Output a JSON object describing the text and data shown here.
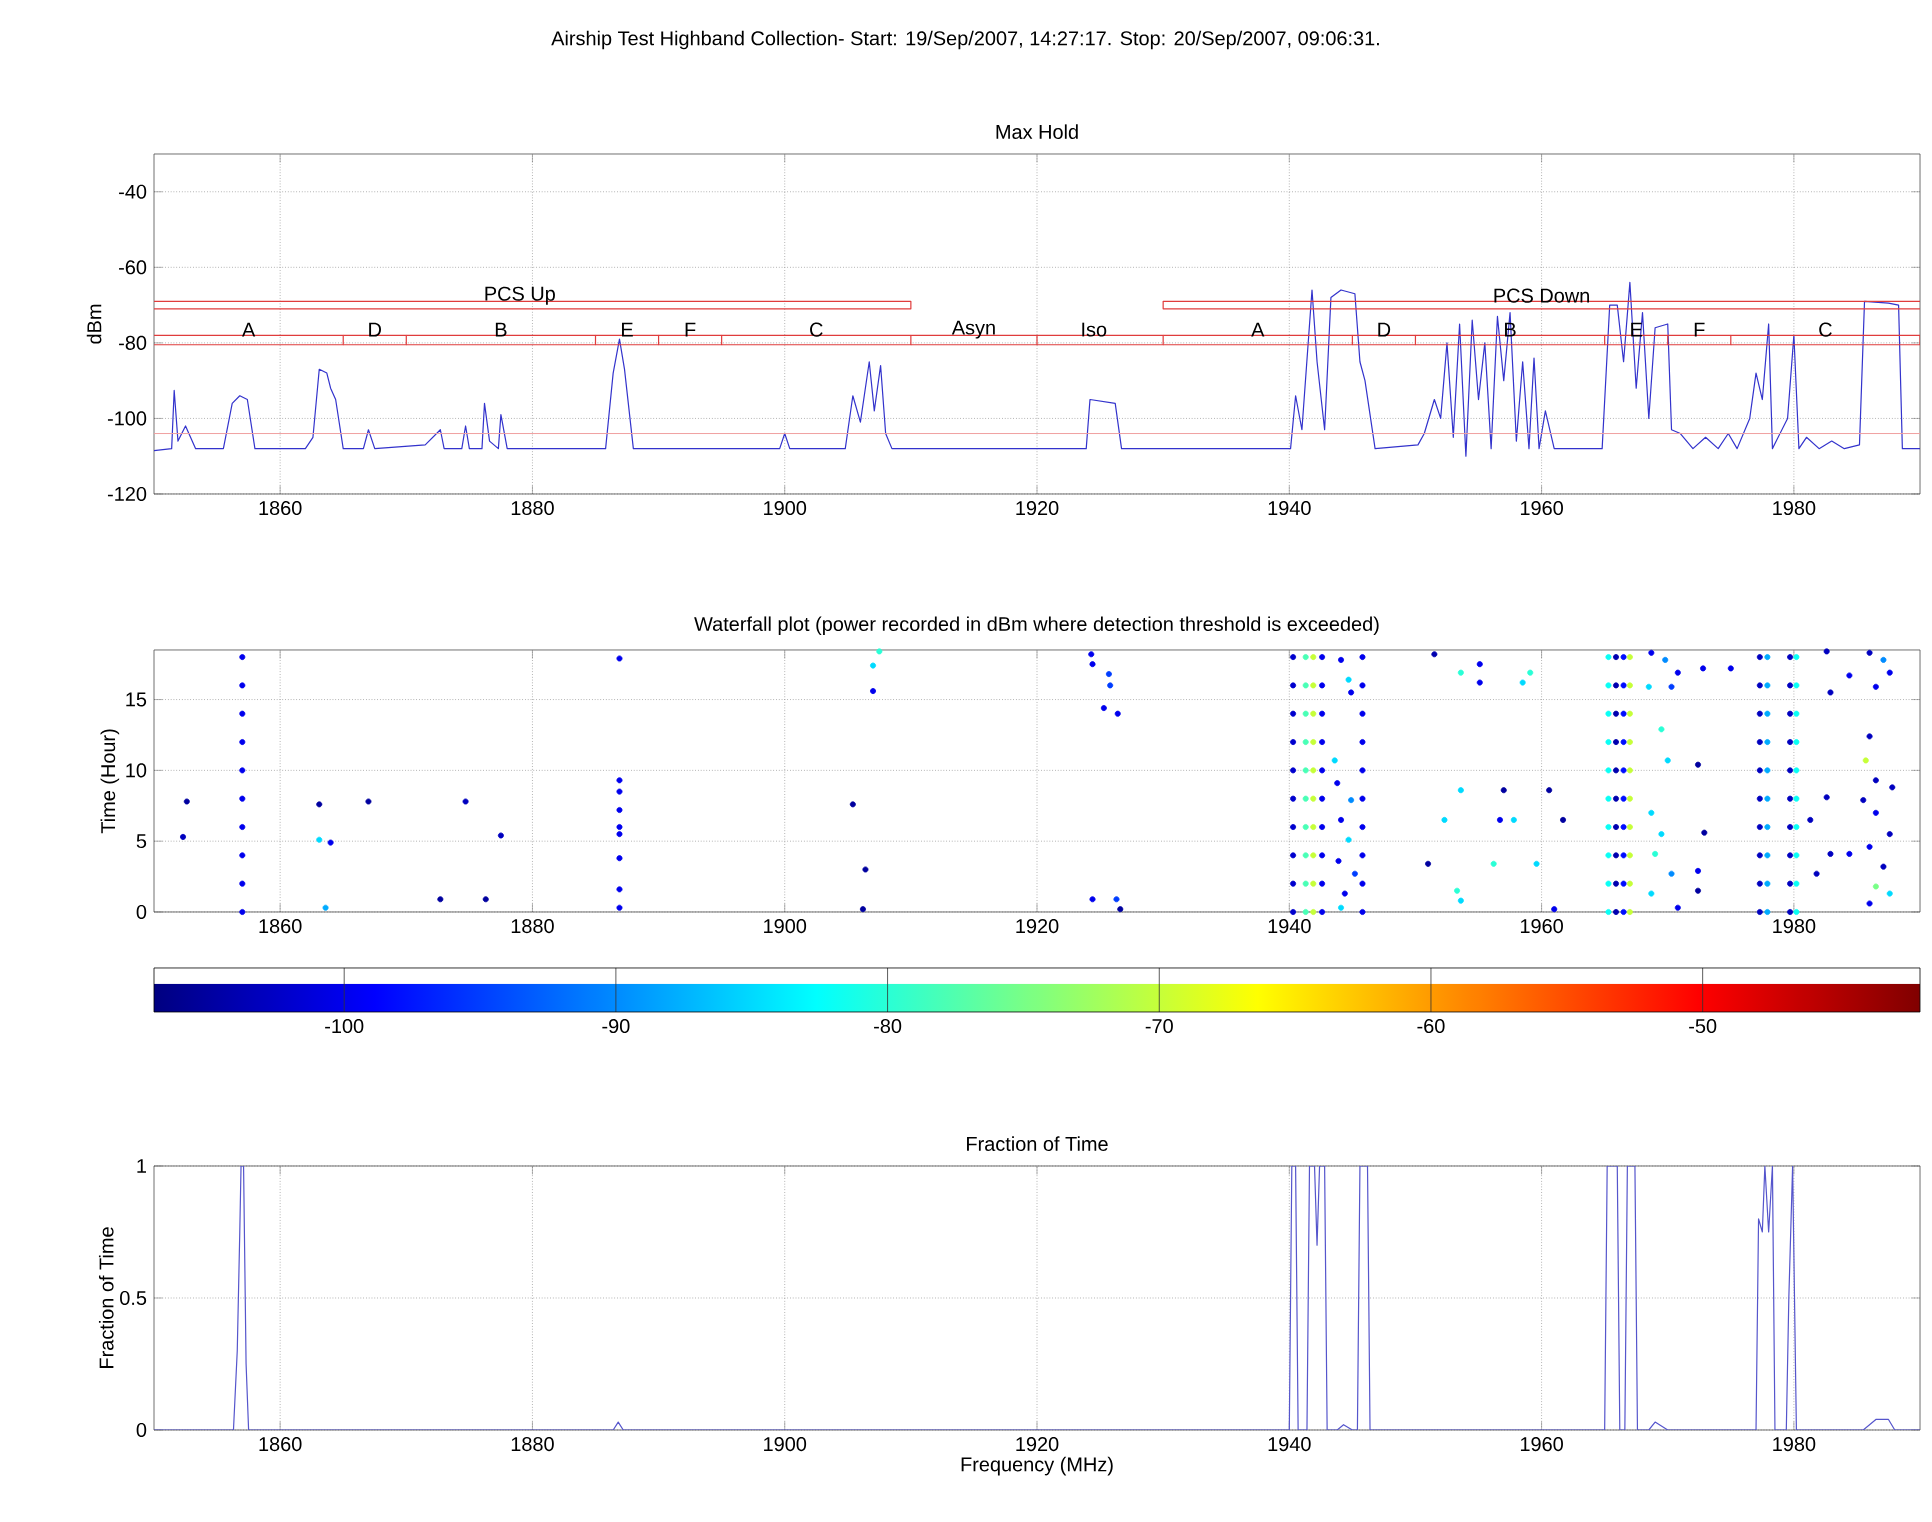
{
  "chart_data": [
    {
      "type": "line",
      "title": "Airship Test Highband Collection- Start: 19/Sep/2007, 14:27:17. Stop:  20/Sep/2007, 09:06:31.",
      "subtitle": "Max Hold",
      "ylabel": "dBm",
      "xlim": [
        1850,
        1990
      ],
      "ylim": [
        -120,
        -30
      ],
      "xticks": [
        1860,
        1880,
        1900,
        1920,
        1940,
        1960,
        1980
      ],
      "yticks": [
        -120,
        -100,
        -80,
        -60,
        -40
      ],
      "grid": true,
      "marker": "none",
      "series": [
        {
          "color": "#3333cc",
          "x": [
            1850,
            1851.4,
            1851.6,
            1851.9,
            1852.5,
            1853.3,
            1855.5,
            1856.2,
            1856.8,
            1857.4,
            1858,
            1862,
            1862.6,
            1863.1,
            1863.7,
            1864,
            1864.4,
            1865,
            1866.6,
            1867,
            1867.5,
            1871.5,
            1872.7,
            1873,
            1874.4,
            1874.7,
            1875,
            1876,
            1876.2,
            1876.6,
            1877.3,
            1877.5,
            1878,
            1885.8,
            1886.4,
            1886.9,
            1887.3,
            1888,
            1899.6,
            1900,
            1900.4,
            1904.8,
            1905.4,
            1906,
            1906.7,
            1907.1,
            1907.6,
            1908,
            1908.5,
            1923.9,
            1924.2,
            1926.2,
            1926.7,
            1940.1,
            1940.5,
            1941.0,
            1941.8,
            1942.2,
            1942.8,
            1943.3,
            1944.1,
            1945.2,
            1945.6,
            1946.0,
            1946.8,
            1950.2,
            1950.7,
            1951.5,
            1952,
            1952.5,
            1953,
            1953.5,
            1954,
            1954.5,
            1955,
            1955.5,
            1956,
            1956.5,
            1957,
            1957.5,
            1958,
            1958.5,
            1959,
            1959.4,
            1959.8,
            1960.3,
            1961,
            1964.8,
            1965.4,
            1966,
            1966.5,
            1967,
            1967.5,
            1968,
            1968.5,
            1969,
            1970,
            1970.3,
            1971,
            1972,
            1973,
            1974,
            1974.8,
            1975.5,
            1976.5,
            1977,
            1977.5,
            1978,
            1978.3,
            1979.5,
            1980,
            1980.4,
            1981,
            1982,
            1983,
            1984,
            1985.2,
            1985.6,
            1987.5,
            1988.3,
            1988.6,
            1990
          ],
          "values": [
            -108.5,
            -108,
            -92.6,
            -106,
            -102,
            -108,
            -108,
            -96,
            -94,
            -95,
            -108,
            -108,
            -105,
            -87,
            -88,
            -92,
            -95,
            -108,
            -108,
            -103,
            -108,
            -107,
            -103,
            -108,
            -108,
            -102,
            -108,
            -108,
            -96,
            -106,
            -108,
            -99,
            -108,
            -108,
            -88,
            -79,
            -87,
            -108,
            -108,
            -104,
            -108,
            -108,
            -94,
            -101,
            -85,
            -98,
            -86,
            -104,
            -108,
            -108,
            -95,
            -96,
            -108,
            -108,
            -94,
            -103,
            -66,
            -85,
            -103,
            -68,
            -66,
            -67,
            -85,
            -90,
            -108,
            -107,
            -104,
            -95,
            -100,
            -80,
            -105,
            -75,
            -110,
            -74,
            -95,
            -80,
            -108,
            -73,
            -90,
            -72,
            -106,
            -85,
            -108,
            -84,
            -108,
            -98,
            -108,
            -108,
            -70,
            -70,
            -85,
            -64,
            -92,
            -72,
            -100,
            -76,
            -75,
            -103,
            -104,
            -108,
            -105,
            -108,
            -104,
            -108,
            -100,
            -88,
            -95,
            -75,
            -108,
            -100,
            -78,
            -108,
            -105,
            -108,
            -106,
            -108,
            -107,
            -69,
            -69.5,
            -70,
            -108,
            -108
          ]
        },
        {
          "color": "#e03c3c",
          "x": [
            1850,
            1910,
            1910,
            1850
          ],
          "values": [
            -69,
            -69,
            -71,
            -71
          ]
        },
        {
          "color": "#e03c3c",
          "x": [
            1990,
            1930,
            1930,
            1990
          ],
          "values": [
            -69,
            -69,
            -71,
            -71
          ]
        },
        {
          "color": "#e03c3c",
          "x": [
            1850,
            1865,
            1865,
            1850
          ],
          "values": [
            -78,
            -78,
            -80.5,
            -80.5
          ]
        },
        {
          "color": "#e03c3c",
          "x": [
            1865,
            1870,
            1870,
            1865
          ],
          "values": [
            -78,
            -78,
            -80.5,
            -80.5
          ]
        },
        {
          "color": "#e03c3c",
          "x": [
            1870,
            1885,
            1885,
            1870
          ],
          "values": [
            -78,
            -78,
            -80.5,
            -80.5
          ]
        },
        {
          "color": "#e03c3c",
          "x": [
            1885,
            1890,
            1890,
            1885
          ],
          "values": [
            -78,
            -78,
            -80.5,
            -80.5
          ]
        },
        {
          "color": "#e03c3c",
          "x": [
            1890,
            1895,
            1895,
            1890
          ],
          "values": [
            -78,
            -78,
            -80.5,
            -80.5
          ]
        },
        {
          "color": "#e03c3c",
          "x": [
            1895,
            1910,
            1910,
            1895
          ],
          "values": [
            -78,
            -78,
            -80.5,
            -80.5
          ]
        },
        {
          "color": "#e03c3c",
          "x": [
            1910,
            1920,
            1920,
            1910
          ],
          "values": [
            -78,
            -78,
            -80.5,
            -80.5
          ]
        },
        {
          "color": "#e03c3c",
          "x": [
            1920,
            1930,
            1930,
            1920
          ],
          "values": [
            -78,
            -78,
            -80.5,
            -80.5
          ]
        },
        {
          "color": "#e03c3c",
          "x": [
            1930,
            1945,
            1945,
            1930
          ],
          "values": [
            -78,
            -78,
            -80.5,
            -80.5
          ]
        },
        {
          "color": "#e03c3c",
          "x": [
            1945,
            1950,
            1950,
            1945
          ],
          "values": [
            -78,
            -78,
            -80.5,
            -80.5
          ]
        },
        {
          "color": "#e03c3c",
          "x": [
            1950,
            1965,
            1965,
            1950
          ],
          "values": [
            -78,
            -78,
            -80.5,
            -80.5
          ]
        },
        {
          "color": "#e03c3c",
          "x": [
            1965,
            1970,
            1970,
            1965
          ],
          "values": [
            -78,
            -78,
            -80.5,
            -80.5
          ]
        },
        {
          "color": "#e03c3c",
          "x": [
            1970,
            1975,
            1975,
            1970
          ],
          "values": [
            -78,
            -78,
            -80.5,
            -80.5
          ]
        },
        {
          "color": "#e03c3c",
          "x": [
            1975,
            1990,
            1990,
            1975
          ],
          "values": [
            -78,
            -78,
            -80.5,
            -80.5
          ]
        }
      ],
      "ref_lines": [
        {
          "axis": "y",
          "value": -104,
          "color": "#f0a0a0"
        }
      ],
      "annotations": [
        {
          "text": "PCS Up",
          "x": 1879,
          "y": -67.5
        },
        {
          "text": "A",
          "x": 1857.5,
          "y": -76.5
        },
        {
          "text": "D",
          "x": 1867.5,
          "y": -76.5
        },
        {
          "text": "B",
          "x": 1877.5,
          "y": -76.5
        },
        {
          "text": "E",
          "x": 1887.5,
          "y": -76.5
        },
        {
          "text": "F",
          "x": 1892.5,
          "y": -76.5
        },
        {
          "text": "C",
          "x": 1902.5,
          "y": -76.5
        },
        {
          "text": "Asyn",
          "x": 1915,
          "y": -76.5
        },
        {
          "text": "Iso",
          "x": 1924.5,
          "y": -76.5
        },
        {
          "text": "PCS Down",
          "x": 1960,
          "y": -67.5
        },
        {
          "text": "A",
          "x": 1937.5,
          "y": -76.5
        },
        {
          "text": "D",
          "x": 1947.5,
          "y": -76.5
        },
        {
          "text": "B",
          "x": 1957.5,
          "y": -76.5
        },
        {
          "text": "E",
          "x": 1967.5,
          "y": -76.5
        },
        {
          "text": "F",
          "x": 1972.5,
          "y": -76.5
        },
        {
          "text": "C",
          "x": 1982.5,
          "y": -76.5
        }
      ]
    },
    {
      "type": "scatter",
      "title": "Waterfall plot (power recorded in dBm where detection threshold is exceeded)",
      "ylabel": "Time (Hour)",
      "xlim": [
        1850,
        1990
      ],
      "ylim": [
        0,
        18.5
      ],
      "xticks": [
        1860,
        1880,
        1900,
        1920,
        1940,
        1960,
        1980
      ],
      "yticks": [
        0,
        5,
        10,
        15
      ],
      "grid": true,
      "marker": "circle",
      "clim": [
        -107,
        -42
      ],
      "cticks": [
        -100,
        -90,
        -80,
        -70,
        -60,
        -50
      ],
      "x": [
        1857,
        1857,
        1857,
        1857,
        1857,
        1857,
        1857,
        1857,
        1857,
        1857,
        1940.3,
        1940.3,
        1940.3,
        1940.3,
        1940.3,
        1940.3,
        1940.3,
        1940.3,
        1940.3,
        1940.3,
        1941.3,
        1941.3,
        1941.3,
        1941.3,
        1941.3,
        1941.3,
        1941.3,
        1941.3,
        1941.3,
        1941.3,
        1941.9,
        1941.9,
        1941.9,
        1941.9,
        1941.9,
        1941.9,
        1941.9,
        1941.9,
        1941.9,
        1941.9,
        1942.6,
        1942.6,
        1942.6,
        1942.6,
        1942.6,
        1942.6,
        1942.6,
        1942.6,
        1942.6,
        1942.6,
        1945.8,
        1945.8,
        1945.8,
        1945.8,
        1945.8,
        1945.8,
        1945.8,
        1945.8,
        1945.8,
        1945.8,
        1965.3,
        1965.3,
        1965.3,
        1965.3,
        1965.3,
        1965.3,
        1965.3,
        1965.3,
        1965.3,
        1965.3,
        1965.9,
        1965.9,
        1965.9,
        1965.9,
        1965.9,
        1965.9,
        1965.9,
        1965.9,
        1965.9,
        1965.9,
        1966.5,
        1966.5,
        1966.5,
        1966.5,
        1966.5,
        1966.5,
        1966.5,
        1966.5,
        1966.5,
        1966.5,
        1967,
        1967,
        1967,
        1967,
        1967,
        1967,
        1967,
        1967,
        1967,
        1967,
        1977.3,
        1977.3,
        1977.3,
        1977.3,
        1977.3,
        1977.3,
        1977.3,
        1977.3,
        1977.3,
        1977.3,
        1977.9,
        1977.9,
        1977.9,
        1977.9,
        1977.9,
        1977.9,
        1977.9,
        1977.9,
        1977.9,
        1977.9,
        1979.7,
        1979.7,
        1979.7,
        1979.7,
        1979.7,
        1979.7,
        1979.7,
        1979.7,
        1979.7,
        1979.7,
        1980.2,
        1980.2,
        1980.2,
        1980.2,
        1980.2,
        1980.2,
        1980.2,
        1980.2,
        1980.2,
        1980.2,
        1852.6,
        1852.3,
        1863.1,
        1863.1,
        1864,
        1863.6,
        1867,
        1872.7,
        1874.7,
        1876.3,
        1877.5,
        1886.9,
        1886.9,
        1886.9,
        1886.9,
        1886.9,
        1886.9,
        1886.9,
        1886.9,
        1886.9,
        1905.4,
        1906.4,
        1906.2,
        1907,
        1907,
        1907.5,
        1924.3,
        1924.4,
        1925.7,
        1925.8,
        1925.3,
        1926.4,
        1924.4,
        1926.3,
        1926.6,
        1944.1,
        1944.7,
        1944.9,
        1943.6,
        1944.9,
        1944.1,
        1944.7,
        1943.9,
        1945.2,
        1944.4,
        1944.1,
        1943.8,
        1951.5,
        1953.6,
        1955.1,
        1955.1,
        1958.5,
        1959.1,
        1957,
        1953.6,
        1952.3,
        1956.7,
        1957.8,
        1951,
        1956.2,
        1959.6,
        1953.3,
        1953.6,
        1960.6,
        1961.7,
        1961,
        1968.7,
        1969.8,
        1970.8,
        1968.5,
        1970.3,
        1969.5,
        1970,
        1972.4,
        1968.7,
        1969.5,
        1969,
        1970.3,
        1968.7,
        1972.4,
        1972.4,
        1972.9,
        1972.8,
        1975,
        1970.8,
        1982.6,
        1982.9,
        1984.4,
        1986,
        1987.1,
        1987.6,
        1986.5,
        1986,
        1985.7,
        1982.6,
        1981.3,
        1982.9,
        1981.8,
        1984.4,
        1985.5,
        1986.5,
        1987.6,
        1986,
        1987.1,
        1986.5,
        1987.6,
        1986,
        1987.8,
        1986.5
      ],
      "values": [
        0,
        2,
        4,
        6,
        8,
        10,
        12,
        14,
        16,
        18,
        0,
        2,
        4,
        6,
        8,
        10,
        12,
        14,
        16,
        18,
        0,
        2,
        4,
        6,
        8,
        10,
        12,
        14,
        16,
        18,
        0,
        2,
        4,
        6,
        8,
        10,
        12,
        14,
        16,
        18,
        0,
        2,
        4,
        6,
        8,
        10,
        12,
        14,
        16,
        18,
        0,
        2,
        4,
        6,
        8,
        10,
        12,
        14,
        16,
        18,
        0,
        2,
        4,
        6,
        8,
        10,
        12,
        14,
        16,
        18,
        0,
        2,
        4,
        6,
        8,
        10,
        12,
        14,
        16,
        18,
        0,
        2,
        4,
        6,
        8,
        10,
        12,
        14,
        16,
        18,
        0,
        2,
        4,
        6,
        8,
        10,
        12,
        14,
        16,
        18,
        0,
        2,
        4,
        6,
        8,
        10,
        12,
        14,
        16,
        18,
        0,
        2,
        4,
        6,
        8,
        10,
        12,
        14,
        16,
        18,
        0,
        2,
        4,
        6,
        8,
        10,
        12,
        14,
        16,
        18,
        0,
        2,
        4,
        6,
        8,
        10,
        12,
        14,
        16,
        18,
        7.8,
        5.3,
        7.6,
        5.1,
        4.9,
        0.3,
        7.8,
        0.9,
        7.8,
        0.9,
        5.4,
        17.9,
        9.3,
        8.5,
        7.2,
        6,
        5.5,
        3.8,
        1.6,
        0.3,
        7.6,
        3,
        0.2,
        17.4,
        15.6,
        18.4,
        18.2,
        17.5,
        16.8,
        16,
        14.4,
        14,
        0.9,
        0.9,
        0.2,
        17.8,
        16.4,
        15.5,
        10.7,
        7.9,
        6.5,
        5.1,
        3.6,
        2.7,
        1.3,
        0.3,
        9.1,
        18.2,
        16.9,
        17.5,
        16.2,
        16.2,
        16.9,
        8.6,
        8.6,
        6.5,
        6.5,
        6.5,
        3.4,
        3.4,
        3.4,
        1.5,
        0.8,
        8.6,
        6.5,
        0.2,
        18.3,
        17.8,
        16.9,
        15.9,
        15.9,
        12.9,
        10.7,
        10.4,
        7,
        5.5,
        4.1,
        2.7,
        1.3,
        2.9,
        1.5,
        5.6,
        17.2,
        17.2,
        0.3,
        18.4,
        15.5,
        16.7,
        18.3,
        17.8,
        16.9,
        15.9,
        12.4,
        10.7,
        8.1,
        6.5,
        4.1,
        2.7,
        4.1,
        7.9,
        7,
        5.5,
        4.6,
        3.2,
        1.8,
        1.3,
        0.6,
        8.8,
        9.3
      ],
      "cvalues": [
        -100,
        -100,
        -100,
        -100,
        -100,
        -100,
        -100,
        -100,
        -100,
        -100,
        -102,
        -102,
        -102,
        -102,
        -102,
        -102,
        -102,
        -102,
        -102,
        -102,
        -78,
        -78,
        -78,
        -78,
        -78,
        -78,
        -78,
        -78,
        -78,
        -78,
        -70,
        -70,
        -70,
        -70,
        -70,
        -70,
        -70,
        -70,
        -70,
        -70,
        -100,
        -100,
        -100,
        -100,
        -100,
        -100,
        -100,
        -100,
        -100,
        -100,
        -100,
        -100,
        -100,
        -100,
        -100,
        -100,
        -100,
        -100,
        -100,
        -100,
        -82,
        -82,
        -82,
        -82,
        -82,
        -82,
        -82,
        -82,
        -82,
        -82,
        -104,
        -104,
        -104,
        -104,
        -104,
        -104,
        -104,
        -104,
        -104,
        -104,
        -98,
        -98,
        -98,
        -98,
        -98,
        -98,
        -98,
        -98,
        -98,
        -98,
        -70,
        -70,
        -70,
        -70,
        -70,
        -70,
        -70,
        -70,
        -70,
        -70,
        -103,
        -103,
        -103,
        -103,
        -103,
        -103,
        -103,
        -103,
        -103,
        -103,
        -88,
        -88,
        -88,
        -88,
        -88,
        -88,
        -88,
        -88,
        -88,
        -88,
        -103,
        -103,
        -103,
        -103,
        -103,
        -103,
        -103,
        -103,
        -103,
        -103,
        -82,
        -82,
        -82,
        -82,
        -82,
        -82,
        -82,
        -82,
        -82,
        -82,
        -105,
        -103,
        -105,
        -85,
        -100,
        -88,
        -105,
        -105,
        -103,
        -105,
        -103,
        -100,
        -100,
        -100,
        -100,
        -100,
        -100,
        -100,
        -100,
        -100,
        -105,
        -105,
        -105,
        -85,
        -100,
        -80,
        -100,
        -100,
        -95,
        -95,
        -100,
        -100,
        -100,
        -95,
        -105,
        -100,
        -85,
        -100,
        -85,
        -90,
        -100,
        -85,
        -100,
        -95,
        -100,
        -85,
        -100,
        -104,
        -80,
        -100,
        -100,
        -85,
        -80,
        -105,
        -85,
        -85,
        -100,
        -85,
        -105,
        -80,
        -85,
        -80,
        -85,
        -105,
        -105,
        -100,
        -100,
        -90,
        -100,
        -85,
        -95,
        -80,
        -85,
        -105,
        -85,
        -85,
        -80,
        -90,
        -85,
        -100,
        -105,
        -105,
        -100,
        -100,
        -100,
        -103,
        -103,
        -100,
        -103,
        -90,
        -100,
        -100,
        -103,
        -70,
        -103,
        -103,
        -103,
        -103,
        -100,
        -103,
        -100,
        -103,
        -100,
        -103,
        -75,
        -85,
        -100,
        -103,
        -103
      ]
    },
    {
      "type": "line",
      "title": "Fraction of Time",
      "xlabel": "Frequency (MHz)",
      "ylabel": "Fraction of Time",
      "xlim": [
        1850,
        1990
      ],
      "ylim": [
        0,
        1
      ],
      "xticks": [
        1860,
        1880,
        1900,
        1920,
        1940,
        1960,
        1980
      ],
      "yticks": [
        0,
        0.5,
        1
      ],
      "grid": true,
      "marker": "none",
      "color": "#5555cc",
      "x": [
        1850,
        1856.3,
        1856.6,
        1856.8,
        1856.9,
        1857.1,
        1857.3,
        1857.5,
        1886.4,
        1886.8,
        1887.2,
        1940,
        1940.2,
        1940.5,
        1940.7,
        1941.4,
        1941.6,
        1942,
        1942.2,
        1942.4,
        1942.8,
        1943,
        1943.8,
        1944.3,
        1945,
        1945.4,
        1945.6,
        1946.2,
        1946.4,
        1965,
        1965.2,
        1966,
        1966.2,
        1966.6,
        1966.8,
        1967.4,
        1967.6,
        1968.5,
        1969,
        1970,
        1977,
        1977.2,
        1977.5,
        1977.7,
        1978,
        1978.3,
        1978.5,
        1979.4,
        1979.6,
        1979.9,
        1980.2,
        1985.5,
        1986.5,
        1987.5,
        1988,
        1990
      ],
      "values": [
        0,
        0,
        0.3,
        0.75,
        1,
        1,
        0.25,
        0,
        0,
        0.03,
        0,
        0,
        1,
        1,
        0,
        0,
        1,
        1,
        0.7,
        1,
        1,
        0,
        0,
        0.02,
        0,
        0,
        1,
        1,
        0,
        0,
        1,
        1,
        0,
        0,
        1,
        1,
        0,
        0,
        0.03,
        0,
        0,
        0.8,
        0.75,
        1,
        0.75,
        1,
        0,
        0,
        0.5,
        1,
        0,
        0,
        0.04,
        0.04,
        0,
        0
      ]
    }
  ]
}
